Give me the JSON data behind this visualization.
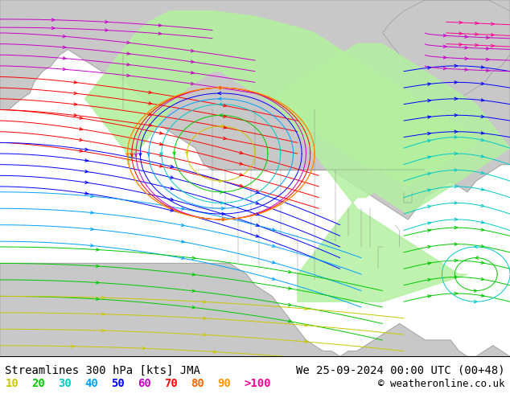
{
  "title_left": "Streamlines 300 hPa [kts] JMA",
  "title_right": "We 25-09-2024 00:00 UTC (00+48)",
  "copyright": "© weatheronline.co.uk",
  "legend_values": [
    "10",
    "20",
    "30",
    "40",
    "50",
    "60",
    "70",
    "80",
    "90",
    ">100"
  ],
  "legend_colors": [
    "#c8c800",
    "#00c800",
    "#00c8c8",
    "#00a0ff",
    "#0000ff",
    "#c800c8",
    "#ff0000",
    "#ff6400",
    "#ff9600",
    "#ff0096"
  ],
  "ocean_color": "#e8e8e8",
  "land_color": "#c8c8c8",
  "green_fill": "#b4f0a0",
  "border_color": "#808080",
  "title_fontsize": 10,
  "legend_fontsize": 10,
  "copyright_fontsize": 9,
  "fig_width": 6.34,
  "fig_height": 4.9,
  "dpi": 100,
  "map_extent": [
    -170,
    -50,
    15,
    80
  ],
  "streamline_lw": 0.7,
  "arrow_size": 6
}
